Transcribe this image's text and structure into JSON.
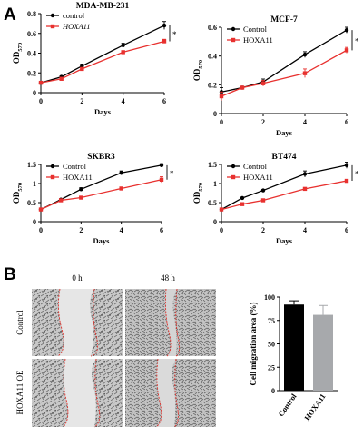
{
  "panel_a_label": "A",
  "panel_b_label": "B",
  "colors": {
    "control": "#000000",
    "hoxa11": "#e8312f",
    "bar_control": "#000000",
    "bar_hoxa11": "#a7a9ac",
    "scratch_line": "#e0312b"
  },
  "chart_data": [
    {
      "type": "line",
      "title": "MDA-MB-231",
      "xlabel": "Days",
      "ylabel_main": "OD",
      "ylabel_sub": "570",
      "xlim": [
        0,
        6
      ],
      "ylim": [
        0,
        0.8
      ],
      "xticks": [
        0,
        2,
        4,
        6
      ],
      "yticks": [
        0,
        0.2,
        0.4,
        0.6,
        0.8
      ],
      "ytick_labels": [
        "0",
        "0.2",
        "0.4",
        "0.6",
        "0.8"
      ],
      "legend_position": "top-left",
      "legend_italic": [
        false,
        true
      ],
      "significance": "*",
      "x": [
        0,
        1,
        2,
        4,
        6
      ],
      "series": [
        {
          "name": "control",
          "values": [
            0.1,
            0.16,
            0.27,
            0.48,
            0.68
          ],
          "errors": [
            0.01,
            0.01,
            0.02,
            0.02,
            0.04
          ]
        },
        {
          "name": "HOXA11",
          "values": [
            0.1,
            0.14,
            0.24,
            0.41,
            0.52
          ],
          "errors": [
            0.01,
            0.01,
            0.01,
            0.01,
            0.02
          ]
        }
      ]
    },
    {
      "type": "line",
      "title": "MCF-7",
      "xlabel": "Days",
      "ylabel_main": "OD",
      "ylabel_sub": "570",
      "xlim": [
        0,
        6
      ],
      "ylim": [
        0,
        0.6
      ],
      "xticks": [
        0,
        2,
        4,
        6
      ],
      "yticks": [
        0,
        0.2,
        0.4,
        0.6
      ],
      "ytick_labels": [
        "0",
        "0.2",
        "0.4",
        "0.6"
      ],
      "legend_position": "top-left",
      "legend_italic": [
        false,
        false
      ],
      "significance": "*",
      "x": [
        0,
        1,
        2,
        4,
        6
      ],
      "series": [
        {
          "name": "Control",
          "values": [
            0.15,
            0.18,
            0.22,
            0.41,
            0.58
          ],
          "errors": [
            0.03,
            0.01,
            0.02,
            0.02,
            0.02
          ]
        },
        {
          "name": "HOXA11",
          "values": [
            0.12,
            0.18,
            0.21,
            0.28,
            0.44
          ],
          "errors": [
            0.03,
            0.01,
            0.02,
            0.03,
            0.02
          ]
        }
      ]
    },
    {
      "type": "line",
      "title": "SKBR3",
      "xlabel": "Days",
      "ylabel_main": "OD",
      "ylabel_sub": "570",
      "xlim": [
        0,
        6
      ],
      "ylim": [
        0,
        1.5
      ],
      "xticks": [
        0,
        2,
        4,
        6
      ],
      "yticks": [
        0,
        0.5,
        1.0,
        1.5
      ],
      "ytick_labels": [
        "0",
        "0.5",
        "1",
        "1.5"
      ],
      "legend_position": "top-left",
      "legend_italic": [
        false,
        false
      ],
      "significance": "*",
      "x": [
        0,
        1,
        2,
        4,
        6
      ],
      "series": [
        {
          "name": "Control",
          "values": [
            0.32,
            0.58,
            0.85,
            1.28,
            1.48
          ],
          "errors": [
            0.02,
            0.02,
            0.04,
            0.05,
            0.04
          ]
        },
        {
          "name": "HOXA11",
          "values": [
            0.32,
            0.56,
            0.63,
            0.87,
            1.1
          ],
          "errors": [
            0.02,
            0.02,
            0.02,
            0.03,
            0.08
          ]
        }
      ]
    },
    {
      "type": "line",
      "title": "BT474",
      "xlabel": "Days",
      "ylabel_main": "OD",
      "ylabel_sub": "570",
      "xlim": [
        0,
        6
      ],
      "ylim": [
        0,
        1.5
      ],
      "xticks": [
        0,
        2,
        4,
        6
      ],
      "yticks": [
        0,
        0.5,
        1.0,
        1.5
      ],
      "ytick_labels": [
        "0",
        "0.5",
        "1",
        "1.5"
      ],
      "legend_position": "top-left",
      "legend_italic": [
        false,
        false
      ],
      "significance": "*",
      "x": [
        0,
        1,
        2,
        4,
        6
      ],
      "series": [
        {
          "name": "Control",
          "values": [
            0.32,
            0.62,
            0.82,
            1.25,
            1.48
          ],
          "errors": [
            0.02,
            0.02,
            0.02,
            0.08,
            0.08
          ]
        },
        {
          "name": "HOXA11",
          "values": [
            0.32,
            0.46,
            0.56,
            0.86,
            1.07
          ],
          "errors": [
            0.02,
            0.02,
            0.02,
            0.03,
            0.03
          ]
        }
      ]
    },
    {
      "type": "bar",
      "ylabel": "Cell migration area (%)",
      "categories": [
        "Control",
        "HOXA11"
      ],
      "values": [
        92,
        81
      ],
      "errors": [
        4,
        10
      ],
      "ylim": [
        0,
        100
      ],
      "yticks": [
        0,
        25,
        50,
        75,
        100
      ],
      "ytick_labels": [
        "0",
        "25",
        "50",
        "75",
        "100"
      ]
    }
  ],
  "micrographs": {
    "columns": [
      "0 h",
      "48 h"
    ],
    "rows": [
      "Control",
      "HOXA11 OE"
    ]
  }
}
